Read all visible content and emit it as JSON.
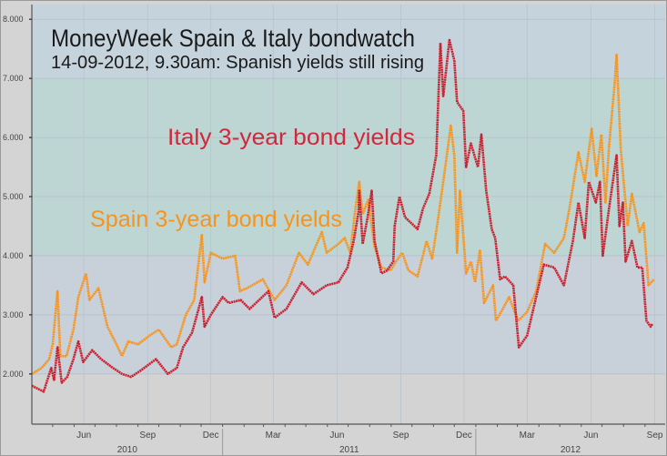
{
  "chart_data": {
    "type": "line",
    "title": "MoneyWeek Spain & Italy bondwatch",
    "subtitle": "14-09-2012, 9.30am: Spanish yields still rising",
    "xlabel": "",
    "ylabel": "",
    "xlim": [
      "2010-04-01",
      "2012-09-30"
    ],
    "ylim": [
      1.15,
      8.25
    ],
    "grid": true,
    "legend": "none",
    "y_ticks": [
      {
        "value": 2,
        "label": "2.000"
      },
      {
        "value": 3,
        "label": "3.000"
      },
      {
        "value": 4,
        "label": "4.000"
      },
      {
        "value": 5,
        "label": "5.000"
      },
      {
        "value": 6,
        "label": "6.000"
      },
      {
        "value": 7,
        "label": "7.000"
      },
      {
        "value": 8,
        "label": "8.000"
      }
    ],
    "x_ticks": [
      {
        "date": "2010-06-15",
        "label": "Jun"
      },
      {
        "date": "2010-09-15",
        "label": "Sep"
      },
      {
        "date": "2010-12-15",
        "label": "Dec"
      },
      {
        "date": "2011-03-15",
        "label": "Mar"
      },
      {
        "date": "2011-06-15",
        "label": "Jun"
      },
      {
        "date": "2011-09-15",
        "label": "Sep"
      },
      {
        "date": "2011-12-15",
        "label": "Dec"
      },
      {
        "date": "2012-03-15",
        "label": "Mar"
      },
      {
        "date": "2012-06-15",
        "label": "Jun"
      },
      {
        "date": "2012-09-15",
        "label": "Sep"
      }
    ],
    "year_labels": [
      {
        "start": "2010-04-01",
        "end": "2011-01-01",
        "label": "2010"
      },
      {
        "start": "2011-01-01",
        "end": "2012-01-01",
        "label": "2011"
      },
      {
        "start": "2012-01-01",
        "end": "2012-09-30",
        "label": "2012"
      }
    ],
    "bands": [
      {
        "from": 7,
        "to": 8.25,
        "color": "#c4d3dc"
      },
      {
        "from": 4,
        "to": 7,
        "color": "#bdd5d3"
      },
      {
        "from": 2,
        "to": 4,
        "color": "#c8d0da"
      },
      {
        "from": 1.15,
        "to": 2,
        "color": "#d3d3d3"
      }
    ],
    "annotations": [
      {
        "text": "Italy 3-year bond yields",
        "color": "#d0283c"
      },
      {
        "text": "Spain 3-year bond yields",
        "color": "#f7941d"
      }
    ],
    "series": [
      {
        "name": "Spain 3-year bond yields",
        "color": "#f7941d",
        "points": [
          [
            "2010-04-01",
            2.0
          ],
          [
            "2010-04-15",
            2.1
          ],
          [
            "2010-04-26",
            2.25
          ],
          [
            "2010-05-01",
            2.5
          ],
          [
            "2010-05-08",
            3.4
          ],
          [
            "2010-05-12",
            2.3
          ],
          [
            "2010-05-21",
            2.3
          ],
          [
            "2010-05-31",
            2.75
          ],
          [
            "2010-06-07",
            3.3
          ],
          [
            "2010-06-18",
            3.7
          ],
          [
            "2010-06-23",
            3.25
          ],
          [
            "2010-07-06",
            3.45
          ],
          [
            "2010-07-19",
            2.8
          ],
          [
            "2010-08-01",
            2.5
          ],
          [
            "2010-08-09",
            2.3
          ],
          [
            "2010-08-18",
            2.55
          ],
          [
            "2010-09-01",
            2.5
          ],
          [
            "2010-09-18",
            2.65
          ],
          [
            "2010-10-01",
            2.75
          ],
          [
            "2010-10-19",
            2.45
          ],
          [
            "2010-10-27",
            2.5
          ],
          [
            "2010-11-09",
            3.0
          ],
          [
            "2010-11-21",
            3.25
          ],
          [
            "2010-12-02",
            4.35
          ],
          [
            "2010-12-06",
            3.55
          ],
          [
            "2010-12-15",
            4.05
          ],
          [
            "2011-01-01",
            3.95
          ],
          [
            "2011-01-19",
            4.0
          ],
          [
            "2011-01-26",
            3.4
          ],
          [
            "2011-02-05",
            3.45
          ],
          [
            "2011-02-28",
            3.6
          ],
          [
            "2011-03-17",
            3.25
          ],
          [
            "2011-04-03",
            3.5
          ],
          [
            "2011-04-21",
            4.05
          ],
          [
            "2011-05-04",
            3.85
          ],
          [
            "2011-05-24",
            4.4
          ],
          [
            "2011-05-31",
            4.05
          ],
          [
            "2011-06-17",
            4.2
          ],
          [
            "2011-06-26",
            4.3
          ],
          [
            "2011-07-04",
            4.05
          ],
          [
            "2011-07-11",
            4.75
          ],
          [
            "2011-07-17",
            5.25
          ],
          [
            "2011-07-22",
            4.7
          ],
          [
            "2011-07-30",
            4.95
          ],
          [
            "2011-08-08",
            4.15
          ],
          [
            "2011-08-18",
            3.8
          ],
          [
            "2011-08-31",
            3.75
          ],
          [
            "2011-09-08",
            3.9
          ],
          [
            "2011-09-17",
            4.05
          ],
          [
            "2011-09-26",
            3.75
          ],
          [
            "2011-10-09",
            3.65
          ],
          [
            "2011-10-22",
            4.25
          ],
          [
            "2011-10-30",
            3.95
          ],
          [
            "2011-11-08",
            4.65
          ],
          [
            "2011-11-18",
            5.5
          ],
          [
            "2011-11-26",
            6.2
          ],
          [
            "2011-12-01",
            5.7
          ],
          [
            "2011-12-05",
            4.05
          ],
          [
            "2011-12-09",
            5.1
          ],
          [
            "2011-12-18",
            3.7
          ],
          [
            "2011-12-25",
            3.9
          ],
          [
            "2011-12-31",
            3.55
          ],
          [
            "2012-01-07",
            4.1
          ],
          [
            "2012-01-13",
            3.2
          ],
          [
            "2012-01-26",
            3.5
          ],
          [
            "2012-01-30",
            2.9
          ],
          [
            "2012-02-09",
            3.1
          ],
          [
            "2012-02-18",
            3.3
          ],
          [
            "2012-03-02",
            2.9
          ],
          [
            "2012-03-15",
            3.05
          ],
          [
            "2012-03-28",
            3.4
          ],
          [
            "2012-04-10",
            4.2
          ],
          [
            "2012-04-23",
            4.05
          ],
          [
            "2012-05-07",
            4.3
          ],
          [
            "2012-05-15",
            4.8
          ],
          [
            "2012-05-28",
            5.75
          ],
          [
            "2012-06-06",
            5.25
          ],
          [
            "2012-06-16",
            6.15
          ],
          [
            "2012-06-23",
            5.35
          ],
          [
            "2012-06-30",
            6.05
          ],
          [
            "2012-07-06",
            4.9
          ],
          [
            "2012-07-11",
            5.85
          ],
          [
            "2012-07-19",
            6.9
          ],
          [
            "2012-07-22",
            7.4
          ],
          [
            "2012-07-28",
            5.8
          ],
          [
            "2012-08-07",
            4.5
          ],
          [
            "2012-08-13",
            5.05
          ],
          [
            "2012-08-24",
            4.4
          ],
          [
            "2012-08-30",
            4.55
          ],
          [
            "2012-09-06",
            3.5
          ],
          [
            "2012-09-14",
            3.6
          ]
        ]
      },
      {
        "name": "Italy 3-year bond yields",
        "color": "#c8202e",
        "points": [
          [
            "2010-04-01",
            1.8
          ],
          [
            "2010-04-18",
            1.7
          ],
          [
            "2010-04-29",
            2.1
          ],
          [
            "2010-05-03",
            1.9
          ],
          [
            "2010-05-08",
            2.45
          ],
          [
            "2010-05-14",
            1.85
          ],
          [
            "2010-05-22",
            1.95
          ],
          [
            "2010-05-31",
            2.25
          ],
          [
            "2010-06-07",
            2.55
          ],
          [
            "2010-06-14",
            2.2
          ],
          [
            "2010-06-27",
            2.4
          ],
          [
            "2010-07-10",
            2.25
          ],
          [
            "2010-07-27",
            2.1
          ],
          [
            "2010-08-09",
            2.0
          ],
          [
            "2010-08-22",
            1.95
          ],
          [
            "2010-09-04",
            2.05
          ],
          [
            "2010-09-27",
            2.25
          ],
          [
            "2010-10-14",
            2.0
          ],
          [
            "2010-10-27",
            2.1
          ],
          [
            "2010-11-05",
            2.45
          ],
          [
            "2010-11-18",
            2.7
          ],
          [
            "2010-12-02",
            3.3
          ],
          [
            "2010-12-06",
            2.8
          ],
          [
            "2010-12-15",
            3.0
          ],
          [
            "2011-01-01",
            3.3
          ],
          [
            "2011-01-10",
            3.2
          ],
          [
            "2011-01-27",
            3.25
          ],
          [
            "2011-02-09",
            3.1
          ],
          [
            "2011-03-08",
            3.4
          ],
          [
            "2011-03-17",
            2.95
          ],
          [
            "2011-04-03",
            3.1
          ],
          [
            "2011-04-25",
            3.55
          ],
          [
            "2011-05-12",
            3.35
          ],
          [
            "2011-05-31",
            3.5
          ],
          [
            "2011-06-17",
            3.55
          ],
          [
            "2011-06-30",
            3.8
          ],
          [
            "2011-07-09",
            4.25
          ],
          [
            "2011-07-16",
            4.75
          ],
          [
            "2011-07-17",
            5.1
          ],
          [
            "2011-07-22",
            4.2
          ],
          [
            "2011-07-29",
            4.65
          ],
          [
            "2011-08-04",
            5.1
          ],
          [
            "2011-08-08",
            4.25
          ],
          [
            "2011-08-18",
            3.7
          ],
          [
            "2011-08-26",
            3.75
          ],
          [
            "2011-09-04",
            3.9
          ],
          [
            "2011-09-06",
            4.5
          ],
          [
            "2011-09-13",
            5.0
          ],
          [
            "2011-09-21",
            4.65
          ],
          [
            "2011-10-09",
            4.45
          ],
          [
            "2011-10-17",
            4.8
          ],
          [
            "2011-10-26",
            5.05
          ],
          [
            "2011-11-05",
            5.7
          ],
          [
            "2011-11-11",
            7.6
          ],
          [
            "2011-11-15",
            6.7
          ],
          [
            "2011-11-24",
            7.65
          ],
          [
            "2011-12-01",
            7.3
          ],
          [
            "2011-12-05",
            6.6
          ],
          [
            "2011-12-14",
            6.45
          ],
          [
            "2011-12-18",
            5.5
          ],
          [
            "2011-12-25",
            5.9
          ],
          [
            "2012-01-04",
            5.5
          ],
          [
            "2012-01-09",
            6.05
          ],
          [
            "2012-01-16",
            5.1
          ],
          [
            "2012-01-24",
            4.45
          ],
          [
            "2012-01-29",
            4.3
          ],
          [
            "2012-02-05",
            3.6
          ],
          [
            "2012-02-12",
            3.65
          ],
          [
            "2012-02-24",
            3.5
          ],
          [
            "2012-03-03",
            2.45
          ],
          [
            "2012-03-15",
            2.65
          ],
          [
            "2012-03-28",
            3.3
          ],
          [
            "2012-04-08",
            3.85
          ],
          [
            "2012-04-23",
            3.8
          ],
          [
            "2012-05-07",
            3.5
          ],
          [
            "2012-05-20",
            4.25
          ],
          [
            "2012-05-28",
            4.9
          ],
          [
            "2012-06-06",
            4.3
          ],
          [
            "2012-06-12",
            5.25
          ],
          [
            "2012-06-22",
            4.9
          ],
          [
            "2012-06-28",
            5.25
          ],
          [
            "2012-07-02",
            4.0
          ],
          [
            "2012-07-11",
            4.8
          ],
          [
            "2012-07-22",
            5.7
          ],
          [
            "2012-07-26",
            4.5
          ],
          [
            "2012-07-31",
            4.9
          ],
          [
            "2012-08-04",
            3.9
          ],
          [
            "2012-08-13",
            4.25
          ],
          [
            "2012-08-21",
            3.8
          ],
          [
            "2012-08-28",
            3.8
          ],
          [
            "2012-09-03",
            2.9
          ],
          [
            "2012-09-09",
            2.8
          ],
          [
            "2012-09-12",
            2.85
          ]
        ]
      }
    ]
  }
}
